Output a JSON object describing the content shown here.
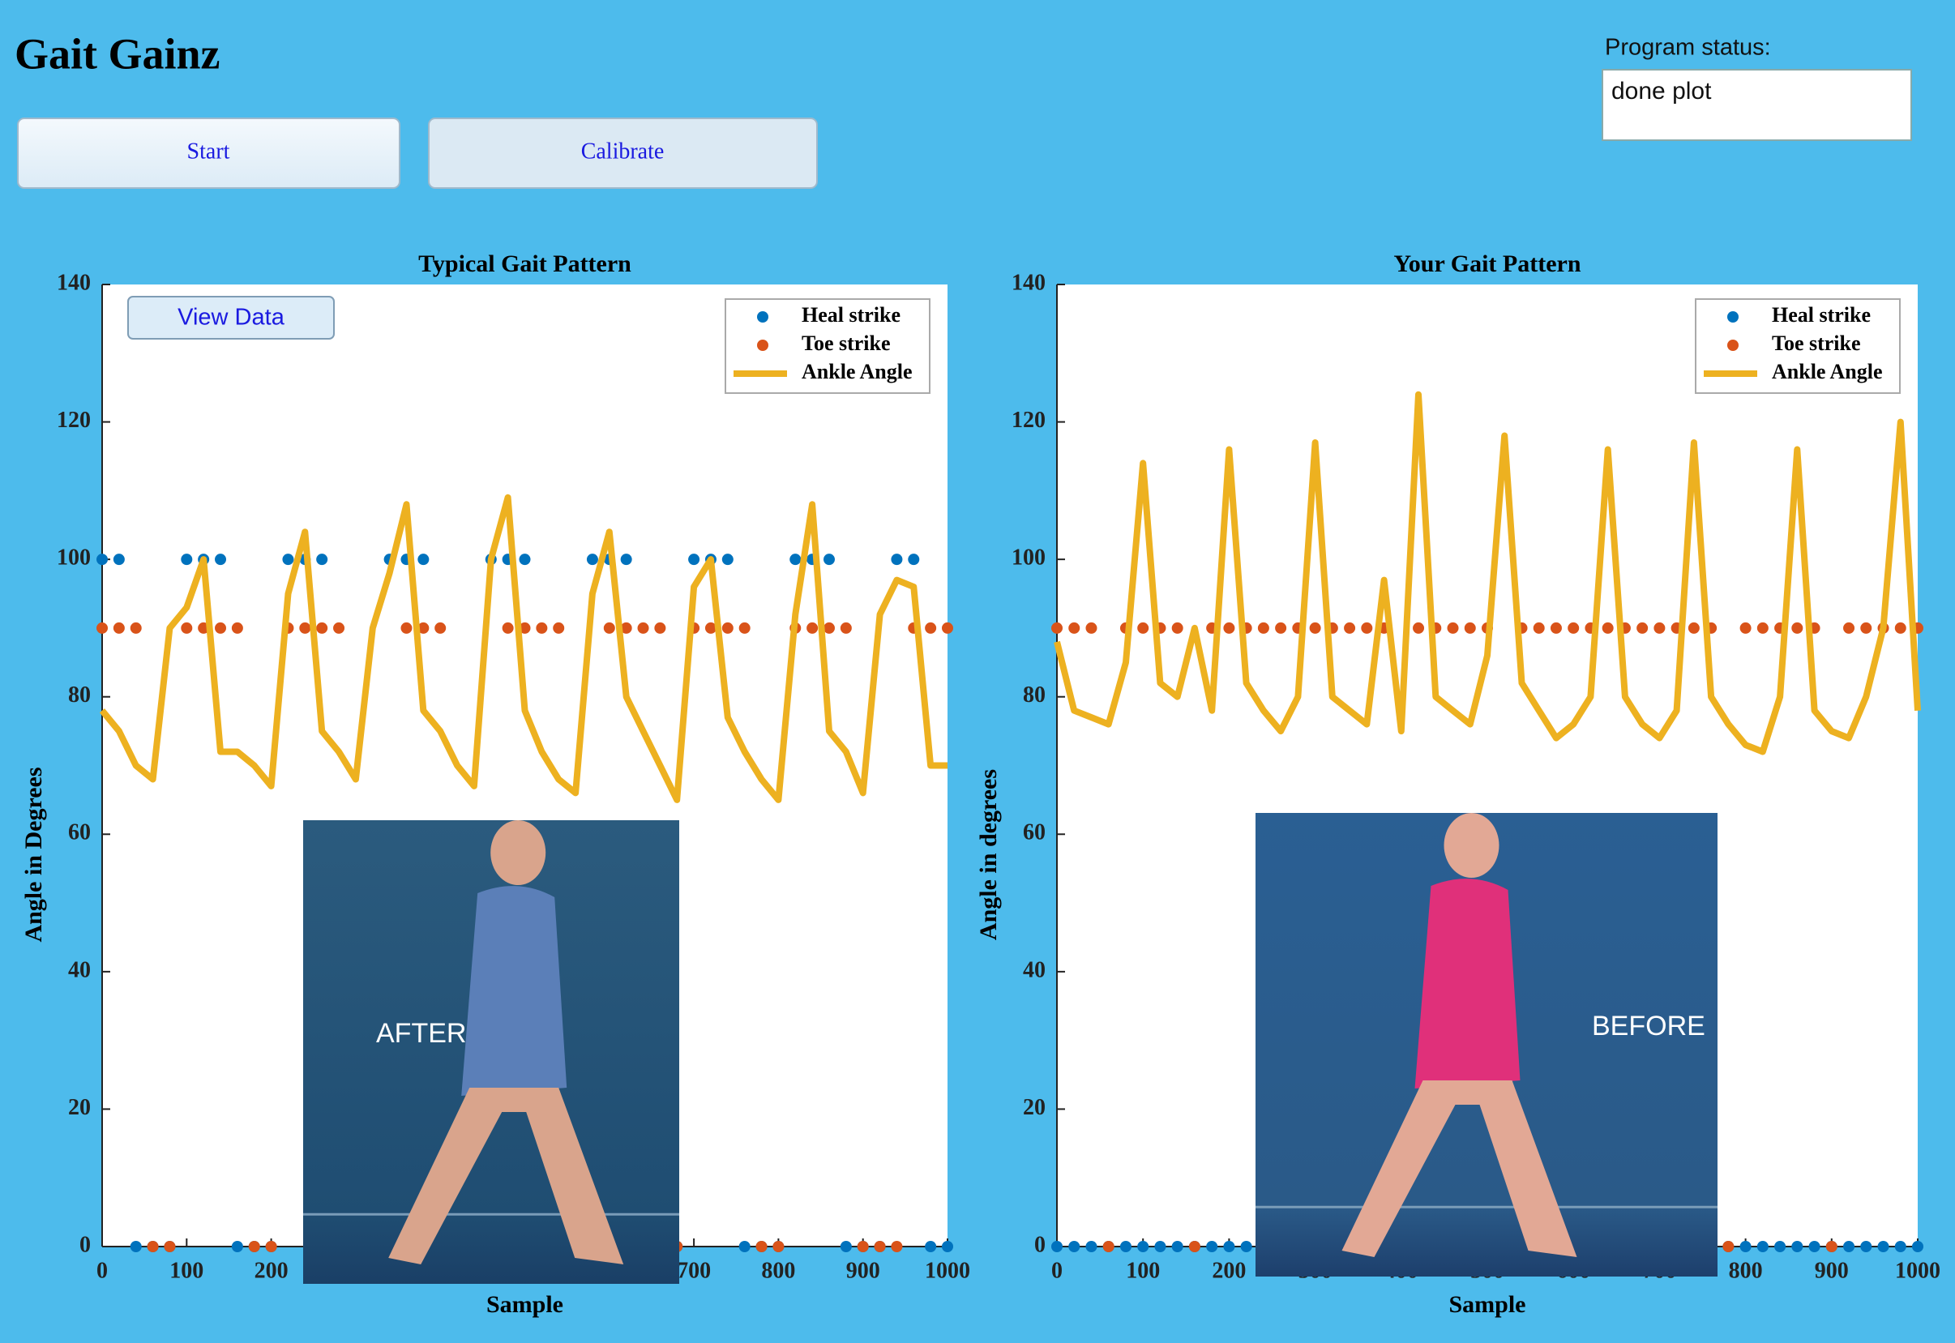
{
  "header": {
    "title": "Gait Gainz"
  },
  "buttons": {
    "start": "Start",
    "calibrate": "Calibrate",
    "view_data": "View Data"
  },
  "status": {
    "label": "Program status:",
    "value": "done plot"
  },
  "images": [
    {
      "caption": "AFTER"
    },
    {
      "caption": "BEFORE"
    }
  ],
  "chart_data": [
    {
      "type": "line",
      "title": "Typical Gait Pattern",
      "xlabel": "Sample",
      "ylabel": "Angle in Degrees",
      "x": [
        0,
        20,
        40,
        60,
        80,
        100,
        120,
        140,
        160,
        180,
        200,
        220,
        240,
        260,
        280,
        300,
        320,
        340,
        360,
        380,
        400,
        420,
        440,
        460,
        480,
        500,
        520,
        540,
        560,
        580,
        600,
        620,
        640,
        660,
        680,
        700,
        720,
        740,
        760,
        780,
        800,
        820,
        840,
        860,
        880,
        900,
        920,
        940,
        960,
        980,
        1000
      ],
      "series": [
        {
          "name": "Heal strike",
          "color": "#0072bd",
          "marker": "dot",
          "values": [
            100,
            100,
            0,
            0,
            0,
            100,
            100,
            100,
            0,
            0,
            0,
            100,
            100,
            100,
            0,
            0,
            0,
            100,
            100,
            100,
            0,
            0,
            0,
            100,
            100,
            100,
            0,
            0,
            0,
            100,
            100,
            100,
            0,
            0,
            0,
            100,
            100,
            100,
            0,
            0,
            0,
            100,
            100,
            100,
            0,
            0,
            0,
            100,
            100,
            0,
            0
          ]
        },
        {
          "name": "Toe strike",
          "color": "#d95319",
          "marker": "dot",
          "values": [
            90,
            90,
            90,
            0,
            0,
            90,
            90,
            90,
            90,
            0,
            0,
            90,
            90,
            90,
            90,
            0,
            0,
            0,
            90,
            90,
            90,
            0,
            0,
            0,
            90,
            90,
            90,
            90,
            0,
            0,
            90,
            90,
            90,
            90,
            0,
            90,
            90,
            90,
            90,
            0,
            0,
            90,
            90,
            90,
            90,
            0,
            0,
            0,
            90,
            90,
            90
          ]
        },
        {
          "name": "Ankle Angle",
          "color": "#edb120",
          "marker": "line",
          "values": [
            78,
            75,
            70,
            68,
            90,
            93,
            100,
            72,
            72,
            70,
            67,
            95,
            104,
            75,
            72,
            68,
            90,
            98,
            108,
            78,
            75,
            70,
            67,
            100,
            109,
            78,
            72,
            68,
            66,
            95,
            104,
            80,
            75,
            70,
            65,
            96,
            100,
            77,
            72,
            68,
            65,
            92,
            108,
            75,
            72,
            66,
            92,
            97,
            96,
            70,
            70
          ]
        }
      ],
      "xlim": [
        0,
        1000
      ],
      "ylim": [
        0,
        140
      ],
      "xticks": [
        0,
        100,
        200,
        300,
        400,
        500,
        600,
        700,
        800,
        900,
        1000
      ],
      "yticks": [
        0,
        20,
        40,
        60,
        80,
        100,
        120,
        140
      ],
      "legend": "upper-right"
    },
    {
      "type": "line",
      "title": "Your Gait Pattern",
      "xlabel": "Sample",
      "ylabel": "Angle in degrees",
      "x": [
        0,
        20,
        40,
        60,
        80,
        100,
        120,
        140,
        160,
        180,
        200,
        220,
        240,
        260,
        280,
        300,
        320,
        340,
        360,
        380,
        400,
        420,
        440,
        460,
        480,
        500,
        520,
        540,
        560,
        580,
        600,
        620,
        640,
        660,
        680,
        700,
        720,
        740,
        760,
        780,
        800,
        820,
        840,
        860,
        880,
        900,
        920,
        940,
        960,
        980,
        1000
      ],
      "series": [
        {
          "name": "Heal strike",
          "color": "#0072bd",
          "marker": "dot",
          "values": [
            0,
            0,
            0,
            0,
            0,
            0,
            0,
            0,
            0,
            0,
            0,
            0,
            0,
            0,
            0,
            0,
            0,
            0,
            0,
            0,
            0,
            0,
            0,
            0,
            0,
            0,
            0,
            0,
            0,
            0,
            0,
            0,
            0,
            0,
            0,
            0,
            0,
            0,
            0,
            0,
            0,
            0,
            0,
            0,
            0,
            0,
            0,
            0,
            0,
            0,
            0
          ]
        },
        {
          "name": "Toe strike",
          "color": "#d95319",
          "marker": "dot",
          "values": [
            90,
            90,
            90,
            0,
            90,
            90,
            90,
            90,
            0,
            90,
            90,
            90,
            90,
            90,
            90,
            90,
            90,
            90,
            90,
            90,
            0,
            90,
            90,
            90,
            90,
            90,
            0,
            90,
            90,
            90,
            90,
            90,
            90,
            90,
            90,
            90,
            90,
            90,
            90,
            0,
            90,
            90,
            90,
            90,
            90,
            0,
            90,
            90,
            90,
            90,
            90
          ]
        },
        {
          "name": "Ankle Angle",
          "color": "#edb120",
          "marker": "line",
          "values": [
            88,
            78,
            77,
            76,
            85,
            114,
            82,
            80,
            90,
            78,
            116,
            82,
            78,
            75,
            80,
            117,
            80,
            78,
            76,
            97,
            75,
            124,
            80,
            78,
            76,
            86,
            118,
            82,
            78,
            74,
            76,
            80,
            116,
            80,
            76,
            74,
            78,
            117,
            80,
            76,
            73,
            72,
            80,
            116,
            78,
            75,
            74,
            80,
            90,
            120,
            78
          ]
        }
      ],
      "xlim": [
        0,
        1000
      ],
      "ylim": [
        0,
        140
      ],
      "xticks": [
        0,
        100,
        200,
        300,
        400,
        500,
        600,
        700,
        800,
        900,
        1000
      ],
      "yticks": [
        0,
        20,
        40,
        60,
        80,
        100,
        120,
        140
      ],
      "legend": "upper-right"
    }
  ]
}
